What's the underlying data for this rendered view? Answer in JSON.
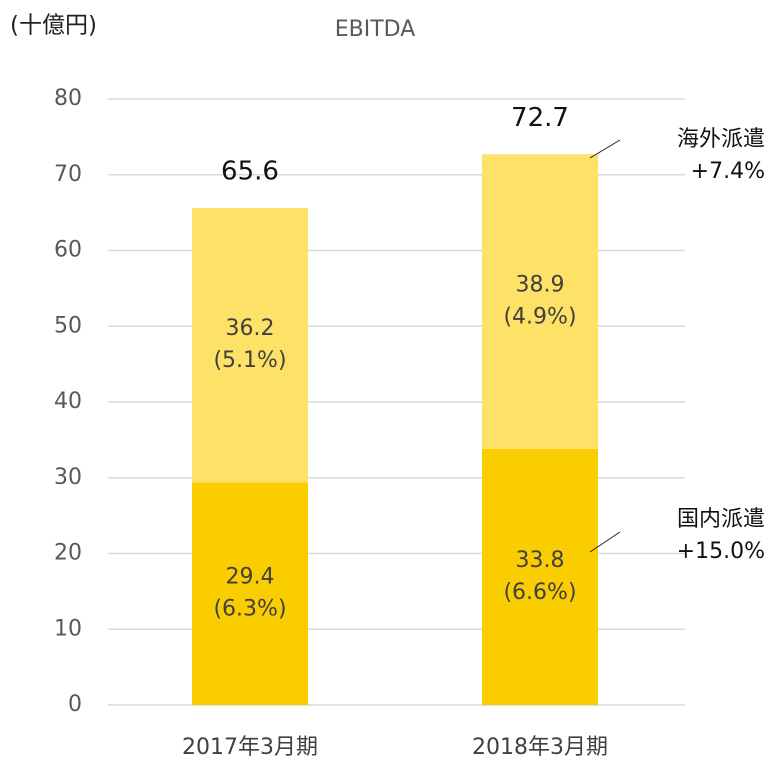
{
  "chart_data": {
    "type": "stacked_bar",
    "title": "EBITDA",
    "y_label": "(十億円)",
    "categories": [
      "2017年3月期",
      "2018年3月期"
    ],
    "series": [
      {
        "name": "国内派遣",
        "color": "#facd00",
        "values": [
          29.4,
          33.8
        ],
        "shares": [
          "(6.3%)",
          "(6.6%)"
        ],
        "growth": "+15.0%"
      },
      {
        "name": "海外派遣",
        "color": "#fee167",
        "values": [
          36.2,
          38.9
        ],
        "shares": [
          "(5.1%)",
          "(4.9%)"
        ],
        "growth": "+7.4%"
      }
    ],
    "totals": [
      65.6,
      72.7
    ],
    "ylim": [
      0,
      80
    ],
    "yticks": [
      0,
      10,
      20,
      30,
      40,
      50,
      60,
      70,
      80
    ],
    "grid": true
  }
}
